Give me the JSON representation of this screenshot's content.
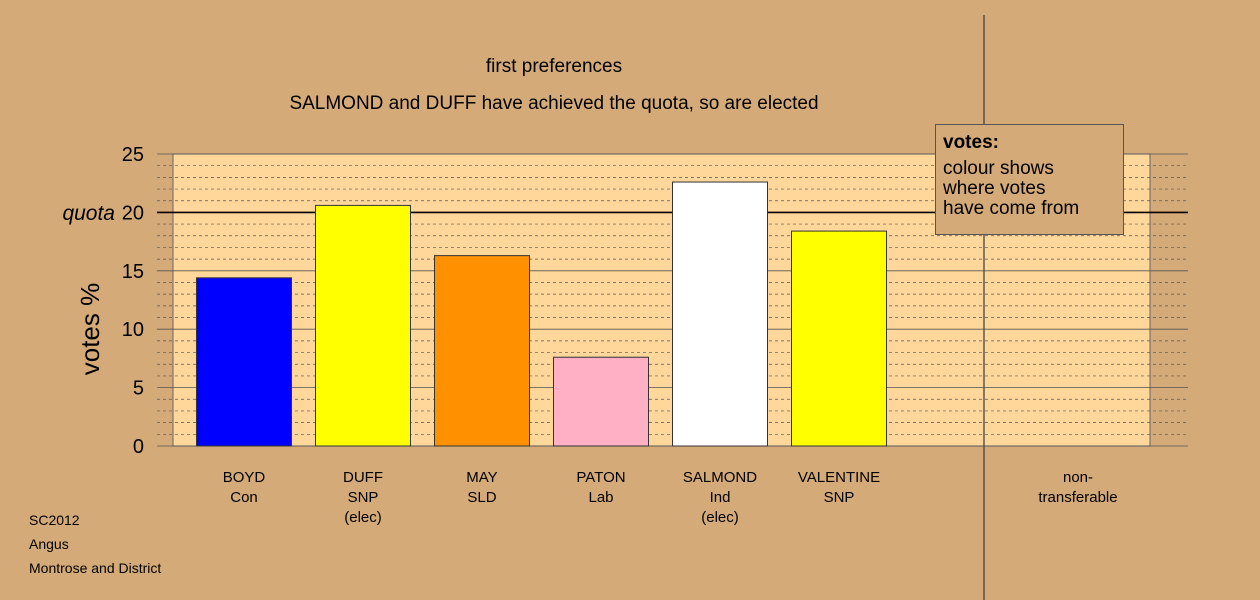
{
  "chart_data": {
    "type": "bar",
    "title": "first preferences",
    "subtitle": "SALMOND and DUFF have achieved the quota, so are elected",
    "ylabel": "votes %",
    "ylim": [
      0,
      25
    ],
    "yticks": [
      0,
      5,
      10,
      15,
      20,
      25
    ],
    "quota": 20,
    "quota_label": "quota",
    "categories": [
      {
        "name": "BOYD",
        "party": "Con",
        "note": "",
        "value": 14.4,
        "color": "#0000ff"
      },
      {
        "name": "DUFF",
        "party": "SNP",
        "note": "(elec)",
        "value": 20.6,
        "color": "#ffff00"
      },
      {
        "name": "MAY",
        "party": "SLD",
        "note": "",
        "value": 16.3,
        "color": "#ff9000"
      },
      {
        "name": "PATON",
        "party": "Lab",
        "note": "",
        "value": 7.6,
        "color": "#ffb0c4"
      },
      {
        "name": "SALMOND",
        "party": "Ind",
        "note": "(elec)",
        "value": 22.6,
        "color": "#ffffff"
      },
      {
        "name": "VALENTINE",
        "party": "SNP",
        "note": "",
        "value": 18.4,
        "color": "#ffff00"
      }
    ],
    "nontransferable": {
      "label_line1": "non-",
      "label_line2": "transferable",
      "value": 0
    },
    "grid": true,
    "legend": {
      "placement": "top-right",
      "title": "votes:",
      "lines": [
        "colour shows",
        "where votes",
        "have come from"
      ]
    }
  },
  "footer": {
    "line1": "SC2012",
    "line2": "Angus",
    "line3": "Montrose and District"
  },
  "colors": {
    "background": "#d4aa78",
    "plot_area": "#ffd79b"
  }
}
